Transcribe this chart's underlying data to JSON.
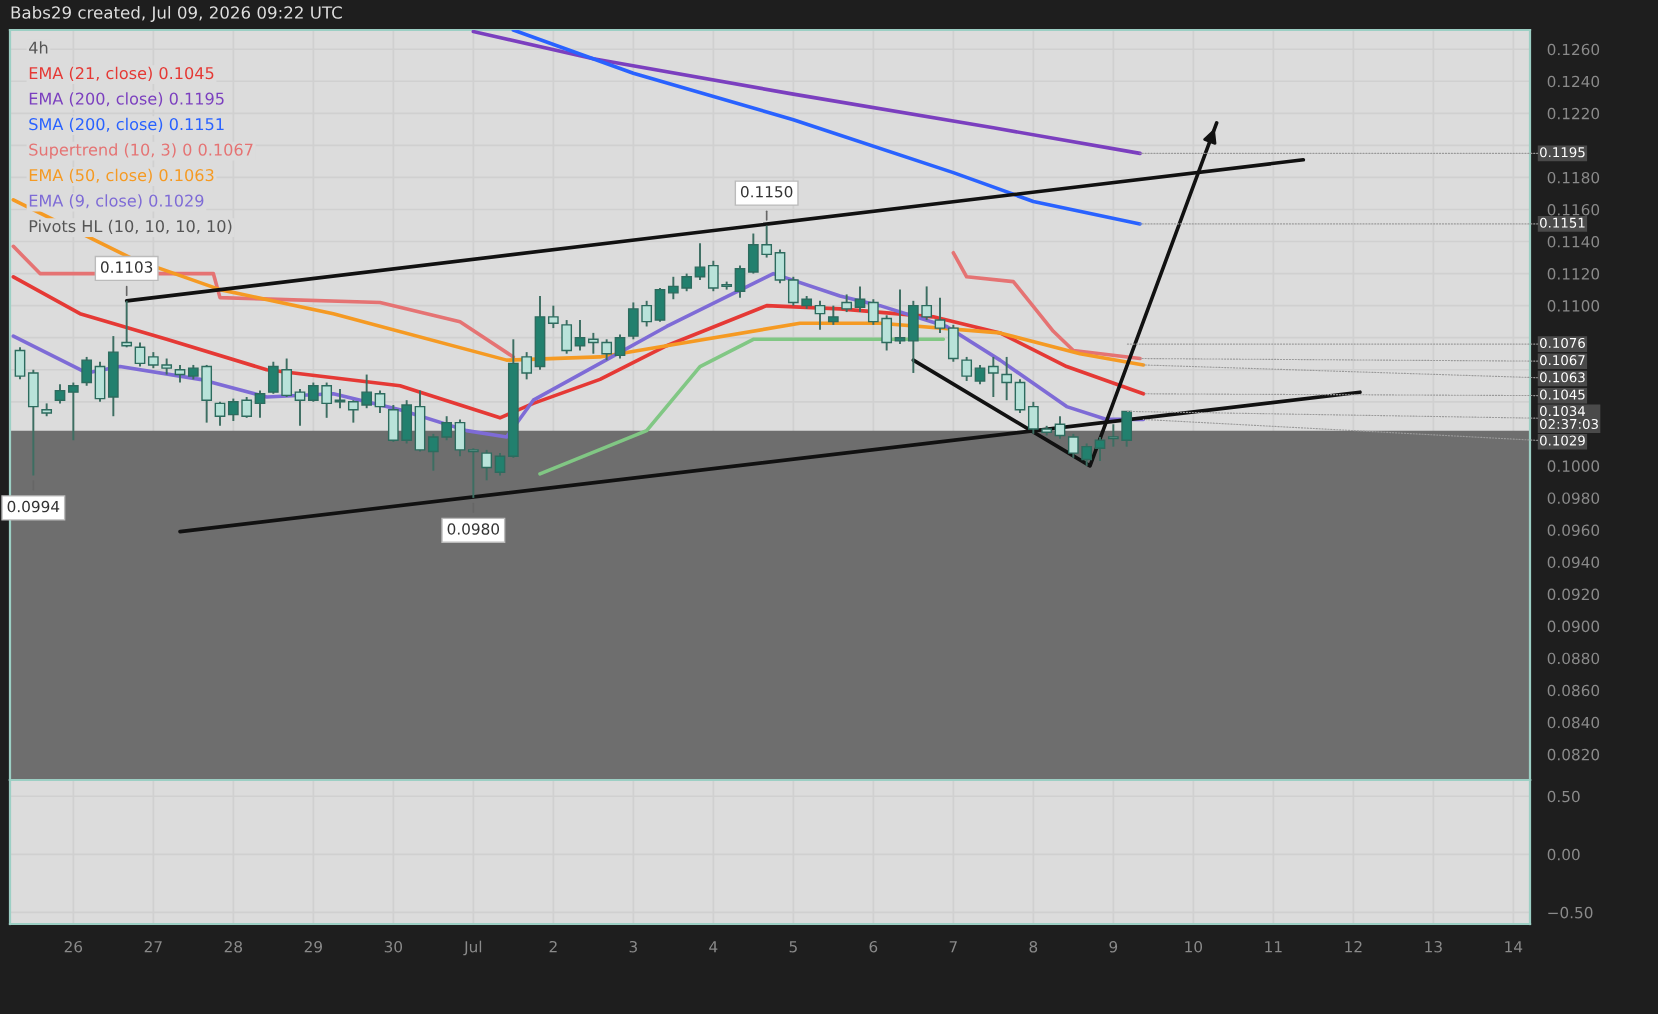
{
  "chart_data": [
    {
      "type": "candlestick",
      "title": "4h",
      "subtitle": "Babs29 created, Jul 09, 2026 09:22 UTC",
      "legend": "top left",
      "grid": true,
      "tick_labels": "y",
      "xlim": [
        "2026-06-25T05:00",
        "2026-07-14T05:00"
      ],
      "xticks": [
        {
          "value": "2026-06-26",
          "label": null
        },
        {
          "value": "2026-06-27",
          "label": null
        },
        {
          "value": "2026-06-28",
          "label": null
        },
        {
          "value": "2026-06-29",
          "label": null
        },
        {
          "value": "2026-06-30",
          "label": null
        },
        {
          "value": "2026-07-01",
          "label": null
        },
        {
          "value": "2026-07-02",
          "label": null
        },
        {
          "value": "2026-07-03",
          "label": null
        },
        {
          "value": "2026-07-04",
          "label": null
        },
        {
          "value": "2026-07-05",
          "label": null
        },
        {
          "value": "2026-07-06",
          "label": null
        },
        {
          "value": "2026-07-07",
          "label": null
        },
        {
          "value": "2026-07-08",
          "label": null
        },
        {
          "value": "2026-07-09",
          "label": null
        },
        {
          "value": "2026-07-10",
          "label": null
        },
        {
          "value": "2026-07-11",
          "label": null
        },
        {
          "value": "2026-07-12",
          "label": null
        },
        {
          "value": "2026-07-13",
          "label": null
        },
        {
          "value": "2026-07-14",
          "label": null
        }
      ],
      "ylim": [
        0.0804,
        0.1272
      ],
      "yticks": [
        {
          "value": 0.082,
          "label": "0.0820"
        },
        {
          "value": 0.084,
          "label": "0.0840"
        },
        {
          "value": 0.086,
          "label": "0.0860"
        },
        {
          "value": 0.088,
          "label": "0.0880"
        },
        {
          "value": 0.09,
          "label": "0.0900"
        },
        {
          "value": 0.092,
          "label": "0.0920"
        },
        {
          "value": 0.094,
          "label": "0.0940"
        },
        {
          "value": 0.096,
          "label": "0.0960"
        },
        {
          "value": 0.098,
          "label": "0.0980"
        },
        {
          "value": 0.1,
          "label": "0.1000"
        },
        {
          "value": 0.104,
          "label": null
        },
        {
          "value": 0.106,
          "label": null
        },
        {
          "value": 0.108,
          "label": null
        },
        {
          "value": 0.11,
          "label": "0.1100"
        },
        {
          "value": 0.112,
          "label": "0.1120"
        },
        {
          "value": 0.114,
          "label": "0.1140"
        },
        {
          "value": 0.116,
          "label": "0.1160"
        },
        {
          "value": 0.118,
          "label": "0.1180"
        },
        {
          "value": 0.12,
          "label": null
        },
        {
          "value": 0.122,
          "label": "0.1220"
        },
        {
          "value": 0.124,
          "label": "0.1240"
        },
        {
          "value": 0.126,
          "label": "0.1260"
        }
      ],
      "x": [
        "2026-06-25T08:00",
        "2026-06-25T12:00",
        "2026-06-25T16:00",
        "2026-06-25T20:00",
        "2026-06-26T00:00",
        "2026-06-26T04:00",
        "2026-06-26T08:00",
        "2026-06-26T12:00",
        "2026-06-26T16:00",
        "2026-06-26T20:00",
        "2026-06-27T00:00",
        "2026-06-27T04:00",
        "2026-06-27T08:00",
        "2026-06-27T12:00",
        "2026-06-27T16:00",
        "2026-06-27T20:00",
        "2026-06-28T00:00",
        "2026-06-28T04:00",
        "2026-06-28T08:00",
        "2026-06-28T12:00",
        "2026-06-28T16:00",
        "2026-06-28T20:00",
        "2026-06-29T00:00",
        "2026-06-29T04:00",
        "2026-06-29T08:00",
        "2026-06-29T12:00",
        "2026-06-29T16:00",
        "2026-06-29T20:00",
        "2026-06-30T00:00",
        "2026-06-30T04:00",
        "2026-06-30T08:00",
        "2026-06-30T12:00",
        "2026-06-30T16:00",
        "2026-06-30T20:00",
        "2026-07-01T00:00",
        "2026-07-01T04:00",
        "2026-07-01T08:00",
        "2026-07-01T12:00",
        "2026-07-01T16:00",
        "2026-07-01T20:00",
        "2026-07-02T00:00",
        "2026-07-02T04:00",
        "2026-07-02T08:00",
        "2026-07-02T12:00",
        "2026-07-02T16:00",
        "2026-07-02T20:00",
        "2026-07-03T00:00",
        "2026-07-03T04:00",
        "2026-07-03T08:00",
        "2026-07-03T12:00",
        "2026-07-03T16:00",
        "2026-07-03T20:00",
        "2026-07-04T00:00",
        "2026-07-04T04:00",
        "2026-07-04T08:00",
        "2026-07-04T12:00",
        "2026-07-04T16:00",
        "2026-07-04T20:00",
        "2026-07-05T00:00",
        "2026-07-05T04:00",
        "2026-07-05T08:00",
        "2026-07-05T12:00",
        "2026-07-05T16:00",
        "2026-07-05T20:00",
        "2026-07-06T00:00",
        "2026-07-06T04:00",
        "2026-07-06T08:00",
        "2026-07-06T12:00",
        "2026-07-06T16:00",
        "2026-07-06T20:00",
        "2026-07-07T00:00",
        "2026-07-07T04:00",
        "2026-07-07T08:00",
        "2026-07-07T12:00",
        "2026-07-07T16:00",
        "2026-07-07T20:00",
        "2026-07-08T00:00",
        "2026-07-08T04:00",
        "2026-07-08T08:00",
        "2026-07-08T12:00",
        "2026-07-08T16:00",
        "2026-07-08T20:00",
        "2026-07-09T00:00",
        "2026-07-09T04:00"
      ],
      "ohlc": [
        [
          0.1072,
          0.1074,
          0.1054,
          0.1056
        ],
        [
          0.1058,
          0.106,
          0.0994,
          0.1037
        ],
        [
          0.1035,
          0.1039,
          0.1031,
          0.1033
        ],
        [
          0.1041,
          0.1051,
          0.1039,
          0.1047
        ],
        [
          0.1046,
          0.1052,
          0.1016,
          0.105
        ],
        [
          0.1052,
          0.1068,
          0.105,
          0.1066
        ],
        [
          0.1062,
          0.1065,
          0.104,
          0.1042
        ],
        [
          0.1043,
          0.1081,
          0.1031,
          0.1071
        ],
        [
          0.1077,
          0.1103,
          0.1074,
          0.1075
        ],
        [
          0.1074,
          0.1077,
          0.1062,
          0.1064
        ],
        [
          0.1068,
          0.1071,
          0.1061,
          0.1063
        ],
        [
          0.1063,
          0.1067,
          0.1057,
          0.1061
        ],
        [
          0.106,
          0.1063,
          0.1052,
          0.1057
        ],
        [
          0.1056,
          0.1063,
          0.1054,
          0.1061
        ],
        [
          0.1062,
          0.1063,
          0.1027,
          0.1041
        ],
        [
          0.1039,
          0.104,
          0.1025,
          0.1031
        ],
        [
          0.1032,
          0.1042,
          0.1028,
          0.104
        ],
        [
          0.1041,
          0.1043,
          0.103,
          0.1031
        ],
        [
          0.1039,
          0.1047,
          0.103,
          0.1045
        ],
        [
          0.1046,
          0.1065,
          0.1045,
          0.1062
        ],
        [
          0.106,
          0.1067,
          0.1043,
          0.1044
        ],
        [
          0.1046,
          0.1048,
          0.1025,
          0.1041
        ],
        [
          0.1041,
          0.1052,
          0.104,
          0.105
        ],
        [
          0.105,
          0.1052,
          0.103,
          0.1039
        ],
        [
          0.1041,
          0.1048,
          0.1036,
          0.104
        ],
        [
          0.104,
          0.1041,
          0.1027,
          0.1035
        ],
        [
          0.1038,
          0.1057,
          0.1036,
          0.1046
        ],
        [
          0.1045,
          0.1047,
          0.1033,
          0.1037
        ],
        [
          0.1035,
          0.1038,
          0.1015,
          0.1016
        ],
        [
          0.1016,
          0.1041,
          0.1014,
          0.1038
        ],
        [
          0.1037,
          0.1047,
          0.1009,
          0.101
        ],
        [
          0.1009,
          0.102,
          0.0997,
          0.1018
        ],
        [
          0.1018,
          0.1031,
          0.1016,
          0.1027
        ],
        [
          0.1027,
          0.1029,
          0.1006,
          0.101
        ],
        [
          0.101,
          0.1011,
          0.098,
          0.1009
        ],
        [
          0.1008,
          0.101,
          0.0991,
          0.0999
        ],
        [
          0.0996,
          0.1008,
          0.0994,
          0.1006
        ],
        [
          0.1006,
          0.1079,
          0.1005,
          0.1064
        ],
        [
          0.1068,
          0.1071,
          0.1054,
          0.1058
        ],
        [
          0.1062,
          0.1106,
          0.106,
          0.1093
        ],
        [
          0.1093,
          0.11,
          0.1086,
          0.1089
        ],
        [
          0.1088,
          0.1091,
          0.107,
          0.1072
        ],
        [
          0.1075,
          0.1091,
          0.1072,
          0.108
        ],
        [
          0.1079,
          0.1083,
          0.107,
          0.1077
        ],
        [
          0.1077,
          0.1079,
          0.1066,
          0.107
        ],
        [
          0.1069,
          0.1082,
          0.1067,
          0.108
        ],
        [
          0.1081,
          0.1102,
          0.1079,
          0.1098
        ],
        [
          0.11,
          0.1103,
          0.1087,
          0.109
        ],
        [
          0.1091,
          0.1111,
          0.109,
          0.111
        ],
        [
          0.1108,
          0.1118,
          0.1104,
          0.1112
        ],
        [
          0.1111,
          0.112,
          0.1109,
          0.1118
        ],
        [
          0.1118,
          0.1139,
          0.1116,
          0.1124
        ],
        [
          0.1125,
          0.1128,
          0.1109,
          0.1111
        ],
        [
          0.1113,
          0.1115,
          0.111,
          0.1112
        ],
        [
          0.1109,
          0.1125,
          0.1105,
          0.1123
        ],
        [
          0.1121,
          0.1145,
          0.112,
          0.1138
        ],
        [
          0.1138,
          0.115,
          0.113,
          0.1132
        ],
        [
          0.1133,
          0.1135,
          0.1114,
          0.1116
        ],
        [
          0.1116,
          0.1118,
          0.11,
          0.1102
        ],
        [
          0.11,
          0.1106,
          0.1098,
          0.1104
        ],
        [
          0.11,
          0.1103,
          0.1085,
          0.1095
        ],
        [
          0.109,
          0.11,
          0.1088,
          0.1093
        ],
        [
          0.1102,
          0.1107,
          0.1096,
          0.1098
        ],
        [
          0.1099,
          0.1112,
          0.1096,
          0.1104
        ],
        [
          0.1102,
          0.1104,
          0.1088,
          0.109
        ],
        [
          0.1092,
          0.1094,
          0.1072,
          0.1077
        ],
        [
          0.1078,
          0.111,
          0.1076,
          0.108
        ],
        [
          0.1078,
          0.1103,
          0.1058,
          0.11
        ],
        [
          0.11,
          0.1112,
          0.1091,
          0.1093
        ],
        [
          0.1091,
          0.1105,
          0.1083,
          0.1086
        ],
        [
          0.1086,
          0.1088,
          0.1065,
          0.1067
        ],
        [
          0.1066,
          0.1068,
          0.1053,
          0.1056
        ],
        [
          0.1053,
          0.1063,
          0.1051,
          0.1061
        ],
        [
          0.1062,
          0.1068,
          0.1043,
          0.1058
        ],
        [
          0.1057,
          0.1068,
          0.1041,
          0.1052
        ],
        [
          0.1052,
          0.1054,
          0.1033,
          0.1035
        ],
        [
          0.1037,
          0.104,
          0.102,
          0.1023
        ],
        [
          0.1023,
          0.1025,
          0.1019,
          0.1021
        ],
        [
          0.1026,
          0.1031,
          0.1017,
          0.1019
        ],
        [
          0.1018,
          0.102,
          0.1005,
          0.1008
        ],
        [
          0.1004,
          0.1014,
          0.1,
          0.1012
        ],
        [
          0.1011,
          0.1018,
          0.1003,
          0.1016
        ],
        [
          0.1018,
          0.1026,
          0.1012,
          0.1017
        ],
        [
          0.1016,
          0.1034,
          0.1012,
          0.1034
        ]
      ],
      "series": [
        {
          "name": "EMA (21, close) 0.1045",
          "type": "line",
          "color": "#e53935",
          "x": [
            "2026-06-25T06:00",
            "2026-06-26T02:00",
            "2026-06-27T04:00",
            "2026-06-28T10:00",
            "2026-06-30T02:00",
            "2026-07-01T08:00",
            "2026-07-01T18:00",
            "2026-07-02T14:00",
            "2026-07-03T10:00",
            "2026-07-04T16:00",
            "2026-07-05T14:00",
            "2026-07-06T18:00",
            "2026-07-07T14:00",
            "2026-07-08T10:00",
            "2026-07-09T09:00"
          ],
          "values": [
            0.1118,
            0.1095,
            0.1079,
            0.106,
            0.105,
            0.103,
            0.1039,
            0.1054,
            0.1075,
            0.11,
            0.1098,
            0.1093,
            0.1083,
            0.1062,
            0.1045
          ]
        },
        {
          "name": "EMA (200, close) 0.1195",
          "type": "line",
          "color": "#7b3fbf",
          "x": [
            "2026-07-01T00:00",
            "2026-07-02T12:00",
            "2026-07-05T00:00",
            "2026-07-07T12:00",
            "2026-07-09T08:00"
          ],
          "values": [
            0.1271,
            0.1254,
            0.1232,
            0.1211,
            0.1195
          ]
        },
        {
          "name": "SMA (200, close) 0.1151",
          "type": "line",
          "color": "#2962ff",
          "x": [
            "2026-07-01T12:00",
            "2026-07-03T00:00",
            "2026-07-05T00:00",
            "2026-07-07T00:00",
            "2026-07-08T00:00",
            "2026-07-09T08:00"
          ],
          "values": [
            0.1272,
            0.1245,
            0.1216,
            0.1183,
            0.1165,
            0.1151
          ]
        },
        {
          "name": "Supertrend (10, 3) 0 0.1067",
          "type": "line",
          "color": "#e57373",
          "x": [
            "2026-06-25T06:00",
            "2026-06-25T14:00",
            "2026-06-27T18:00",
            "2026-06-27T20:00",
            "2026-06-29T20:00",
            "2026-06-30T20:00",
            "2026-07-01T12:00",
            "2026-07-01T16:00",
            "2026-07-07T00:00",
            "2026-07-07T04:00",
            "2026-07-07T18:00",
            "2026-07-08T06:00",
            "2026-07-08T12:00",
            "2026-07-09T08:00"
          ],
          "values": [
            0.1137,
            0.112,
            0.112,
            0.1105,
            0.1102,
            0.109,
            0.1068,
            null,
            0.1133,
            0.1118,
            0.1115,
            0.1084,
            0.1072,
            0.1067
          ]
        },
        {
          "type": "line",
          "color": "#81c784",
          "x": [
            "2026-07-01T20:00",
            "2026-07-03T04:00",
            "2026-07-03T20:00",
            "2026-07-04T12:00",
            "2026-07-06T21:00"
          ],
          "values": [
            0.0995,
            0.1022,
            0.1062,
            0.1079,
            0.1079
          ]
        },
        {
          "name": "EMA (50, close) 0.1063",
          "type": "line",
          "color": "#f59a23",
          "x": [
            "2026-06-25T06:00",
            "2026-06-26T18:00",
            "2026-06-27T20:00",
            "2026-06-29T06:00",
            "2026-07-01T10:00",
            "2026-07-02T14:00",
            "2026-07-03T10:00",
            "2026-07-05T02:00",
            "2026-07-06T02:00",
            "2026-07-07T14:00",
            "2026-07-08T14:00",
            "2026-07-09T09:00"
          ],
          "values": [
            0.1166,
            0.1129,
            0.111,
            0.1095,
            0.1066,
            0.1068,
            0.1075,
            0.1089,
            0.1089,
            0.1083,
            0.107,
            0.1063
          ]
        },
        {
          "name": "EMA (9, close) 0.1029",
          "type": "line",
          "color": "#7e6bd6",
          "x": [
            "2026-06-25T06:00",
            "2026-06-26T04:00",
            "2026-06-26T14:00",
            "2026-06-27T14:00",
            "2026-06-28T10:00",
            "2026-06-29T06:00",
            "2026-06-30T02:00",
            "2026-06-30T22:00",
            "2026-07-01T10:00",
            "2026-07-01T18:00",
            "2026-07-02T14:00",
            "2026-07-03T10:00",
            "2026-07-04T18:00",
            "2026-07-05T14:00",
            "2026-07-06T02:00",
            "2026-07-06T22:00",
            "2026-07-07T14:00",
            "2026-07-08T10:00",
            "2026-07-08T22:00",
            "2026-07-09T09:00"
          ],
          "values": [
            0.1081,
            0.1058,
            0.1062,
            0.1054,
            0.1043,
            0.1045,
            0.1035,
            0.1022,
            0.1018,
            0.1041,
            0.1064,
            0.1087,
            0.112,
            0.1106,
            0.11,
            0.1087,
            0.1066,
            0.1037,
            0.1029,
            0.1029
          ]
        },
        {
          "type": "line",
          "color": "#111111",
          "x": [
            "2026-06-26T16:00",
            "2026-07-11T09:00"
          ],
          "values": [
            0.1103,
            0.1191
          ]
        },
        {
          "type": "line",
          "color": "#111111",
          "x": [
            "2026-06-27T08:00",
            "2026-07-12T02:00"
          ],
          "values": [
            0.0959,
            0.1046
          ]
        },
        {
          "type": "line",
          "color": "#111111",
          "x": [
            "2026-07-06T12:00",
            "2026-07-08T17:00",
            "2026-07-10T07:00"
          ],
          "values": [
            0.1066,
            0.1,
            0.1214
          ]
        }
      ],
      "bands": [
        {
          "axis": "y",
          "from": 0.0804,
          "to": 0.1022,
          "color": "#6e6e6e"
        }
      ],
      "annotations": [
        "Pivots HL (10, 10, 10, 10)",
        {
          "text": "0.1103",
          "x": "2026-06-26T16:00",
          "y": 0.1103
        },
        {
          "text": "0.1150",
          "x": "2026-07-04T16:00",
          "y": 0.115
        },
        {
          "text": "0.0994",
          "x": "2026-06-25T12:00",
          "y": 0.0994
        },
        {
          "text": "0.0980",
          "x": "2026-07-01T00:00",
          "y": 0.098
        },
        {
          "text": "0.1195",
          "x": "2026-07-09T08:00",
          "y": 0.1195
        },
        {
          "text": "0.1151",
          "x": "2026-07-09T08:00",
          "y": 0.1151
        },
        {
          "text": "0.1076",
          "x": "2026-07-09T04:00",
          "y": 0.1076
        },
        {
          "text": "0.1067",
          "x": "2026-07-09T08:00",
          "y": 0.1067
        },
        {
          "text": "0.1063",
          "x": "2026-07-09T09:00",
          "y": 0.1063
        },
        {
          "text": "0.1045",
          "x": "2026-07-09T09:00",
          "y": 0.1045
        },
        {
          "text": "0.1034\n02:37:03",
          "x": "2026-07-09T04:00",
          "y": 0.1034
        },
        {
          "text": "0.1029",
          "x": "2026-07-09T09:00",
          "y": 0.1029
        }
      ]
    },
    {
      "type": "line",
      "grid": true,
      "xlim": [
        "2026-06-25T05:00",
        "2026-07-14T05:00"
      ],
      "xticks": [
        {
          "value": "2026-06-26",
          "label": "26"
        },
        {
          "value": "2026-06-27",
          "label": "27"
        },
        {
          "value": "2026-06-28",
          "label": "28"
        },
        {
          "value": "2026-06-29",
          "label": "29"
        },
        {
          "value": "2026-06-30",
          "label": "30"
        },
        {
          "value": "2026-07-01",
          "label": "Jul"
        },
        {
          "value": "2026-07-02",
          "label": "2"
        },
        {
          "value": "2026-07-03",
          "label": "3"
        },
        {
          "value": "2026-07-04",
          "label": "4"
        },
        {
          "value": "2026-07-05",
          "label": "5"
        },
        {
          "value": "2026-07-06",
          "label": "6"
        },
        {
          "value": "2026-07-07",
          "label": "7"
        },
        {
          "value": "2026-07-08",
          "label": "8"
        },
        {
          "value": "2026-07-09",
          "label": "9"
        },
        {
          "value": "2026-07-10",
          "label": "10"
        },
        {
          "value": "2026-07-11",
          "label": "11"
        },
        {
          "value": "2026-07-12",
          "label": "12"
        },
        {
          "value": "2026-07-13",
          "label": "13"
        },
        {
          "value": "2026-07-14",
          "label": "14"
        }
      ],
      "ylim": [
        -0.6,
        0.64
      ],
      "yticks": [
        {
          "value": 0.5,
          "label": "0.50"
        },
        {
          "value": 0,
          "label": "0.00"
        },
        {
          "value": -0.5,
          "label": "−0.50"
        }
      ]
    }
  ]
}
